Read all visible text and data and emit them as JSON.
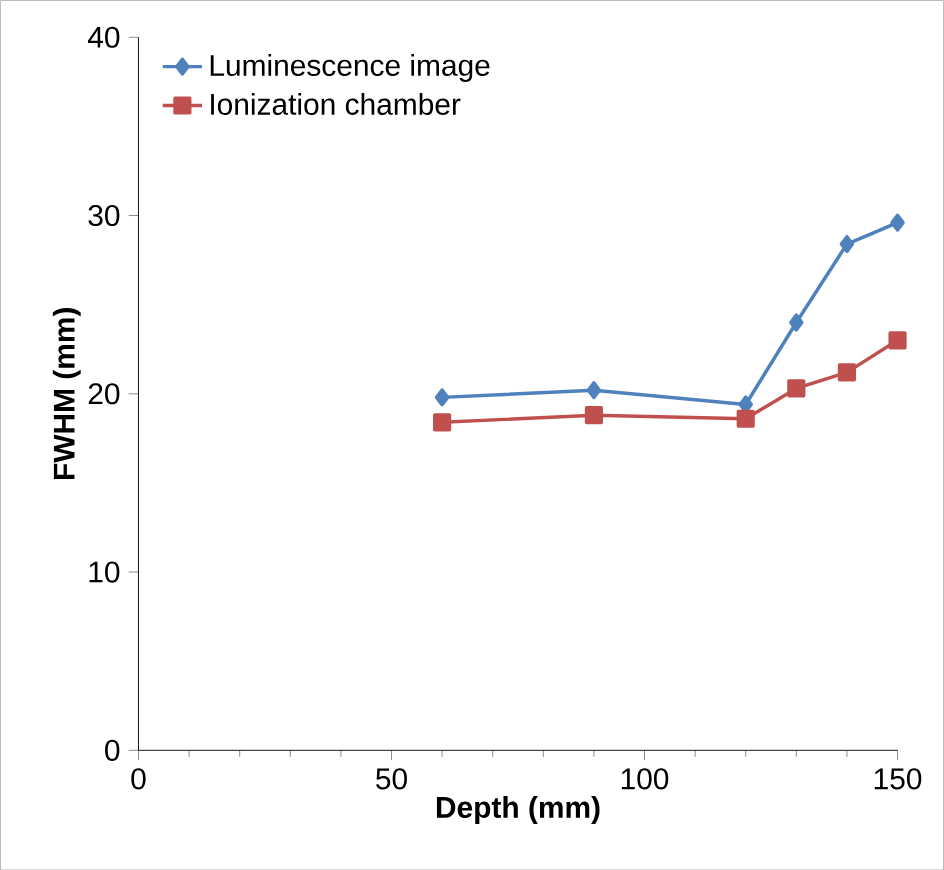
{
  "chart_data": {
    "type": "line",
    "xlabel": "Depth (mm)",
    "ylabel": "FWHM (mm)",
    "x": [
      60,
      90,
      120,
      130,
      140,
      150
    ],
    "series": [
      {
        "name": "Luminescence image",
        "color": "#4f81bd",
        "marker": "diamond",
        "values": [
          19.8,
          20.2,
          19.4,
          24.0,
          28.4,
          29.6
        ]
      },
      {
        "name": "Ionization chamber",
        "color": "#c0504d",
        "marker": "square",
        "values": [
          18.4,
          18.8,
          18.6,
          20.3,
          21.2,
          23.0
        ]
      }
    ],
    "xlim": [
      0,
      150
    ],
    "xticks": [
      0,
      50,
      100,
      150
    ],
    "ylim": [
      0,
      40
    ],
    "yticks": [
      0,
      10,
      20,
      30,
      40
    ],
    "legend": "top left",
    "grid": false
  }
}
